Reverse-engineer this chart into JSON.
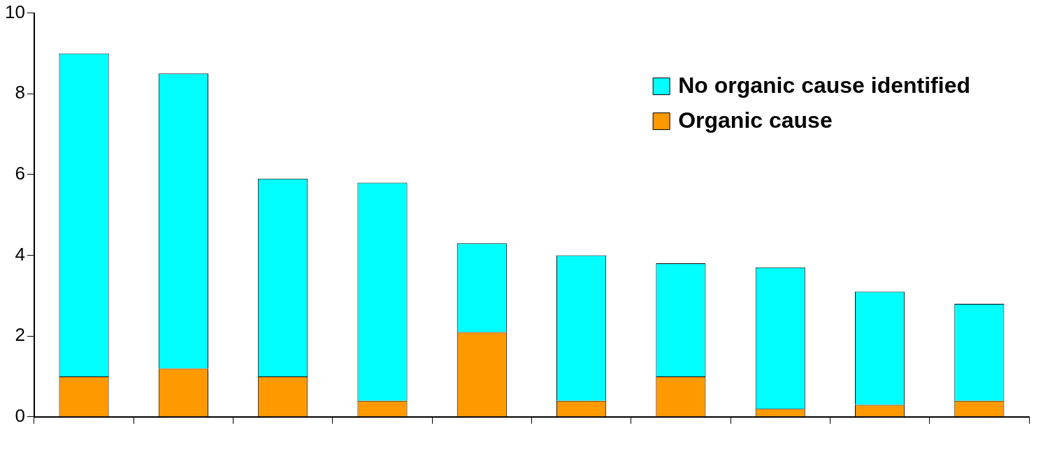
{
  "chart_data": {
    "type": "bar",
    "stacked": true,
    "categories": [
      null,
      null,
      null,
      null,
      null,
      null,
      null,
      null,
      null,
      null
    ],
    "series": [
      {
        "name": "Organic cause",
        "color": "#ff9900",
        "values": [
          1.0,
          1.2,
          1.0,
          0.4,
          2.1,
          0.4,
          1.0,
          0.2,
          0.3,
          0.4
        ]
      },
      {
        "name": "No organic cause identified",
        "color": "#00ffff",
        "values": [
          8.0,
          7.3,
          4.9,
          5.4,
          2.2,
          3.6,
          2.8,
          3.5,
          2.8,
          2.4
        ]
      }
    ],
    "ylim": [
      0,
      10
    ],
    "yticks": [
      0,
      2,
      4,
      6,
      8,
      10
    ],
    "grid": false,
    "legend": "top right"
  }
}
